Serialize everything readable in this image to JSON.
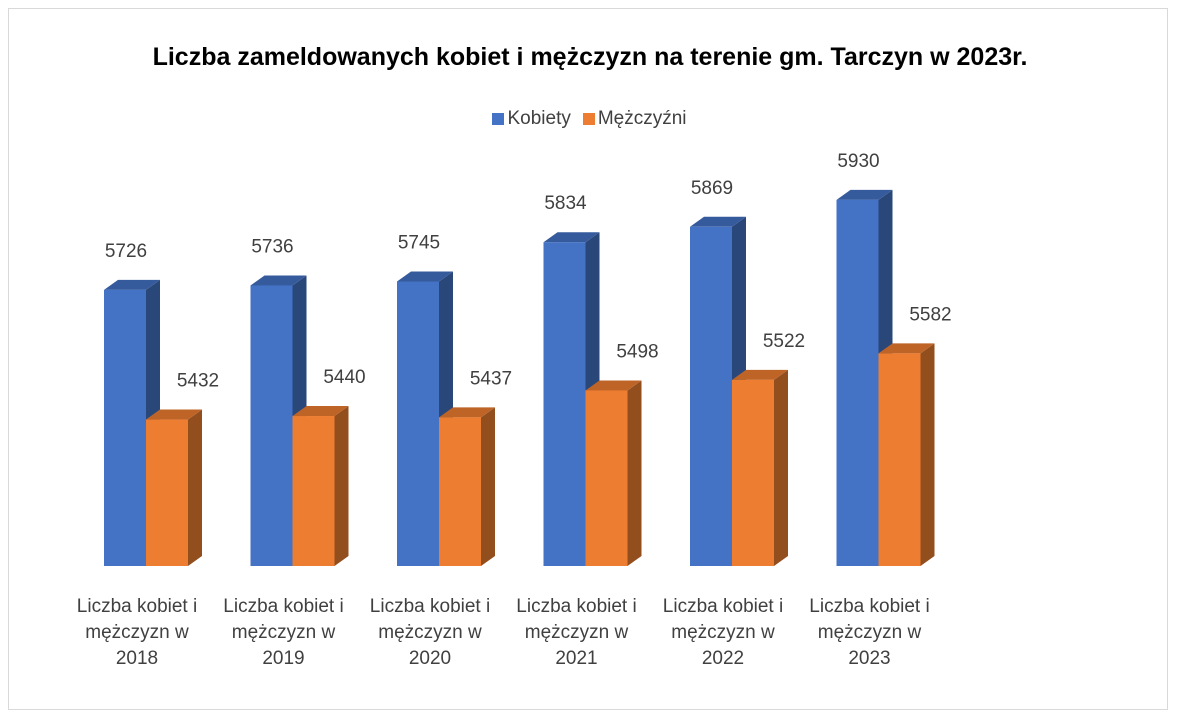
{
  "chart_data": {
    "type": "bar3d",
    "title": "Liczba zameldowanych kobiet i mężczyzn na terenie gm. Tarczyn w 2023r.",
    "categories": [
      "Liczba kobiet i mężczyzn w 2018",
      "Liczba kobiet i mężczyzn w 2019",
      "Liczba kobiet i mężczyzn w 2020",
      "Liczba kobiet i mężczyzn w 2021",
      "Liczba kobiet i mężczyzn w 2022",
      "Liczba kobiet i mężczyzn w 2023"
    ],
    "series": [
      {
        "name": "Kobiety",
        "color": "#4472c4",
        "values": [
          5726,
          5736,
          5745,
          5834,
          5869,
          5930
        ]
      },
      {
        "name": "Mężczyźni",
        "color": "#ed7d31",
        "values": [
          5432,
          5440,
          5437,
          5498,
          5522,
          5582
        ]
      }
    ],
    "ylim": [
      5100,
      6000
    ],
    "legend": "top"
  }
}
